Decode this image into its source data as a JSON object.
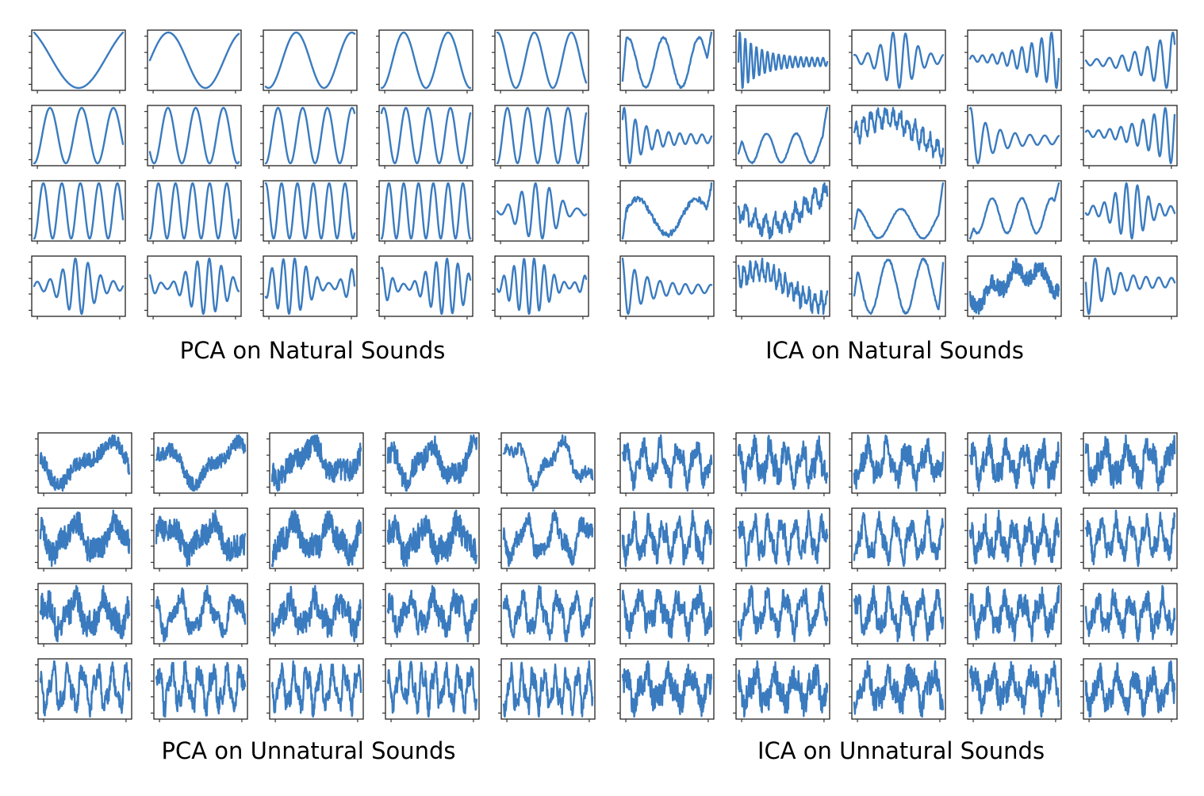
{
  "captions": {
    "pca_natural": "PCA on Natural Sounds",
    "ica_natural": "ICA on Natural Sounds",
    "pca_unnatural": "PCA on Unnatural Sounds",
    "ica_unnatural": "ICA on Unnatural Sounds"
  },
  "colors": {
    "trace": "#3a7bbf",
    "frame": "#222222"
  },
  "chart_data": [
    {
      "type": "line",
      "title": "PCA on Natural Sounds",
      "grid": {
        "rows": 4,
        "cols": 5
      },
      "components": [
        {
          "kind": "sine",
          "cycles": 0.8,
          "phase": 0.35,
          "noise": 0
        },
        {
          "kind": "sine",
          "cycles": 1.2,
          "phase": 0.0,
          "noise": 0
        },
        {
          "kind": "sine",
          "cycles": 1.6,
          "phase": 0.7,
          "noise": 0
        },
        {
          "kind": "sine",
          "cycles": 2.0,
          "phase": 0.75,
          "noise": 0
        },
        {
          "kind": "sine",
          "cycles": 2.4,
          "phase": 0.25,
          "noise": 0
        },
        {
          "kind": "sine",
          "cycles": 2.8,
          "phase": 0.75,
          "noise": 0
        },
        {
          "kind": "sine",
          "cycles": 3.2,
          "phase": 0.6,
          "noise": 0
        },
        {
          "kind": "sine",
          "cycles": 3.6,
          "phase": 0.75,
          "noise": 0
        },
        {
          "kind": "sine",
          "cycles": 4.0,
          "phase": 0.15,
          "noise": 0
        },
        {
          "kind": "sine",
          "cycles": 4.4,
          "phase": 0.75,
          "noise": 0
        },
        {
          "kind": "sine",
          "cycles": 4.8,
          "phase": 0.75,
          "noise": 0
        },
        {
          "kind": "sine",
          "cycles": 5.2,
          "phase": 0.75,
          "noise": 0
        },
        {
          "kind": "sine",
          "cycles": 5.6,
          "phase": 0.25,
          "noise": 0
        },
        {
          "kind": "sine",
          "cycles": 6.0,
          "phase": 0.75,
          "noise": 0
        },
        {
          "kind": "beat",
          "cycles": 6.4,
          "phase": 0.5,
          "noise": 0
        },
        {
          "kind": "packet",
          "cycles": 7.0,
          "phase": 0.0,
          "noise": 0
        },
        {
          "kind": "beat",
          "cycles": 7.4,
          "phase": 0.3,
          "noise": 0
        },
        {
          "kind": "beat",
          "cycles": 7.8,
          "phase": 0.7,
          "noise": 0
        },
        {
          "kind": "beat",
          "cycles": 8.2,
          "phase": 0.2,
          "noise": 0
        },
        {
          "kind": "beat",
          "cycles": 8.8,
          "phase": 0.6,
          "noise": 0
        }
      ]
    },
    {
      "type": "line",
      "title": "ICA on Natural Sounds",
      "grid": {
        "rows": 4,
        "cols": 5
      },
      "components": [
        {
          "kind": "edge",
          "cycles": 2.5,
          "phase": 0.1,
          "noise": 0.05
        },
        {
          "kind": "decay",
          "cycles": 16,
          "phase": 0.0,
          "noise": 0
        },
        {
          "kind": "packet",
          "cycles": 7,
          "phase": 0.2,
          "noise": 0
        },
        {
          "kind": "rise",
          "cycles": 9,
          "phase": 0.0,
          "noise": 0
        },
        {
          "kind": "rise",
          "cycles": 7,
          "phase": 0.4,
          "noise": 0
        },
        {
          "kind": "decay",
          "cycles": 8,
          "phase": 0.1,
          "noise": 0
        },
        {
          "kind": "edge",
          "cycles": 3,
          "phase": 0.3,
          "noise": 0.05
        },
        {
          "kind": "drift",
          "cycles": 4,
          "phase": 0.0,
          "noise": 0.15
        },
        {
          "kind": "decay",
          "cycles": 6,
          "phase": 0.2,
          "noise": 0
        },
        {
          "kind": "rise",
          "cycles": 8,
          "phase": 0.1,
          "noise": 0
        },
        {
          "kind": "edge",
          "cycles": 1.5,
          "phase": 0.0,
          "noise": 0.2
        },
        {
          "kind": "drift",
          "cycles": 3,
          "phase": 0.5,
          "noise": 0.2
        },
        {
          "kind": "edge",
          "cycles": 2,
          "phase": 0.2,
          "noise": 0.05
        },
        {
          "kind": "edge",
          "cycles": 3,
          "phase": 0.5,
          "noise": 0.05
        },
        {
          "kind": "packet",
          "cycles": 8,
          "phase": 0.6,
          "noise": 0
        },
        {
          "kind": "decay",
          "cycles": 7,
          "phase": 0.3,
          "noise": 0
        },
        {
          "kind": "drift",
          "cycles": 5,
          "phase": 0.1,
          "noise": 0.2
        },
        {
          "kind": "edge",
          "cycles": 2.5,
          "phase": 0.3,
          "noise": 0.05
        },
        {
          "kind": "drift",
          "cycles": 1.2,
          "phase": 0.8,
          "noise": 0.25
        },
        {
          "kind": "decay",
          "cycles": 7,
          "phase": 0.5,
          "noise": 0
        }
      ]
    },
    {
      "type": "line",
      "title": "PCA on Unnatural Sounds",
      "grid": {
        "rows": 4,
        "cols": 5
      },
      "components": [
        {
          "kind": "noisy",
          "cycles": 1.0,
          "phase": 0.5,
          "noise": 0.25
        },
        {
          "kind": "noisy",
          "cycles": 1.2,
          "phase": 0.2,
          "noise": 0.25
        },
        {
          "kind": "noisy",
          "cycles": 1.5,
          "phase": 0.6,
          "noise": 0.45
        },
        {
          "kind": "noisy",
          "cycles": 2.0,
          "phase": 0.3,
          "noise": 0.4
        },
        {
          "kind": "noisy",
          "cycles": 1.8,
          "phase": 0.1,
          "noise": 0.2
        },
        {
          "kind": "noisy",
          "cycles": 2.2,
          "phase": 0.4,
          "noise": 0.55
        },
        {
          "kind": "noisy",
          "cycles": 2.0,
          "phase": 0.0,
          "noise": 0.55
        },
        {
          "kind": "noisy",
          "cycles": 2.4,
          "phase": 0.7,
          "noise": 0.5
        },
        {
          "kind": "noisy",
          "cycles": 2.6,
          "phase": 0.2,
          "noise": 0.6
        },
        {
          "kind": "noisy",
          "cycles": 3.0,
          "phase": 0.5,
          "noise": 0.3
        },
        {
          "kind": "noisy",
          "cycles": 3.0,
          "phase": 0.1,
          "noise": 0.6
        },
        {
          "kind": "noisy",
          "cycles": 3.2,
          "phase": 0.4,
          "noise": 0.3
        },
        {
          "kind": "noisy",
          "cycles": 3.4,
          "phase": 0.6,
          "noise": 0.55
        },
        {
          "kind": "noisy",
          "cycles": 3.8,
          "phase": 0.3,
          "noise": 0.5
        },
        {
          "kind": "noisy",
          "cycles": 5.0,
          "phase": 0.2,
          "noise": 0.25
        },
        {
          "kind": "noisy",
          "cycles": 6.0,
          "phase": 0.4,
          "noise": 0.25
        },
        {
          "kind": "noisy",
          "cycles": 6.5,
          "phase": 0.1,
          "noise": 0.3
        },
        {
          "kind": "noisy",
          "cycles": 7.0,
          "phase": 0.5,
          "noise": 0.3
        },
        {
          "kind": "noisy",
          "cycles": 7.5,
          "phase": 0.3,
          "noise": 0.3
        },
        {
          "kind": "noisy",
          "cycles": 8.0,
          "phase": 0.6,
          "noise": 0.3
        }
      ]
    },
    {
      "type": "line",
      "title": "ICA on Unnatural Sounds",
      "grid": {
        "rows": 4,
        "cols": 5
      },
      "components": [
        {
          "kind": "noisy",
          "cycles": 5.0,
          "phase": 0.1,
          "noise": 0.35
        },
        {
          "kind": "noisy",
          "cycles": 5.5,
          "phase": 0.3,
          "noise": 0.45
        },
        {
          "kind": "noisy",
          "cycles": 4.5,
          "phase": 0.6,
          "noise": 0.45
        },
        {
          "kind": "noisy",
          "cycles": 5.0,
          "phase": 0.2,
          "noise": 0.45
        },
        {
          "kind": "noisy",
          "cycles": 4.0,
          "phase": 0.4,
          "noise": 0.5
        },
        {
          "kind": "noisy",
          "cycles": 6.0,
          "phase": 0.5,
          "noise": 0.4
        },
        {
          "kind": "noisy",
          "cycles": 6.5,
          "phase": 0.1,
          "noise": 0.35
        },
        {
          "kind": "noisy",
          "cycles": 5.5,
          "phase": 0.7,
          "noise": 0.3
        },
        {
          "kind": "noisy",
          "cycles": 6.0,
          "phase": 0.3,
          "noise": 0.45
        },
        {
          "kind": "noisy",
          "cycles": 6.0,
          "phase": 0.2,
          "noise": 0.3
        },
        {
          "kind": "noisy",
          "cycles": 4.5,
          "phase": 0.4,
          "noise": 0.45
        },
        {
          "kind": "noisy",
          "cycles": 5.0,
          "phase": 0.6,
          "noise": 0.35
        },
        {
          "kind": "noisy",
          "cycles": 5.5,
          "phase": 0.1,
          "noise": 0.35
        },
        {
          "kind": "noisy",
          "cycles": 5.0,
          "phase": 0.3,
          "noise": 0.45
        },
        {
          "kind": "noisy",
          "cycles": 5.5,
          "phase": 0.5,
          "noise": 0.4
        },
        {
          "kind": "noisy",
          "cycles": 4.0,
          "phase": 0.2,
          "noise": 0.5
        },
        {
          "kind": "noisy",
          "cycles": 4.5,
          "phase": 0.4,
          "noise": 0.55
        },
        {
          "kind": "noisy",
          "cycles": 4.0,
          "phase": 0.7,
          "noise": 0.5
        },
        {
          "kind": "noisy",
          "cycles": 4.5,
          "phase": 0.1,
          "noise": 0.55
        },
        {
          "kind": "noisy",
          "cycles": 5.0,
          "phase": 0.5,
          "noise": 0.45
        }
      ]
    }
  ]
}
